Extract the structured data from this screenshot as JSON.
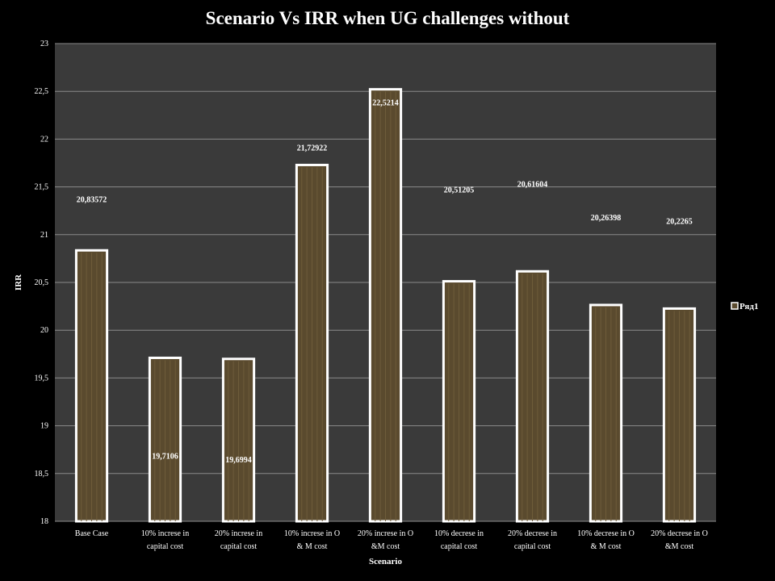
{
  "chart_data": {
    "type": "bar",
    "title": "Scenario Vs IRR when UG challenges without",
    "xlabel": "Scenario",
    "ylabel": "IRR",
    "ylim": [
      18,
      23
    ],
    "yticks": [
      "18",
      "18,5",
      "19",
      "19,5",
      "20",
      "20,5",
      "21",
      "21,5",
      "22",
      "22,5",
      "23"
    ],
    "tick_values": [
      18,
      18.5,
      19,
      19.5,
      20,
      20.5,
      21,
      21.5,
      22,
      22.5,
      23
    ],
    "grid": true,
    "legend_position": "right",
    "categories": [
      [
        "Base Case"
      ],
      [
        "10% increse in",
        "capital cost"
      ],
      [
        "20% increse in",
        "capital cost"
      ],
      [
        "10% increse in O",
        "& M cost"
      ],
      [
        "20% increse in O",
        "&M cost"
      ],
      [
        "10% decrese in",
        "capital cost"
      ],
      [
        "20% decrese in",
        "capital cost"
      ],
      [
        "10% decrese in O",
        "& M cost"
      ],
      [
        "20% decrese in O",
        "&M cost"
      ]
    ],
    "series": [
      {
        "name": "Ряд1",
        "values": [
          20.83572,
          19.7106,
          19.6994,
          21.72922,
          22.5214,
          20.51205,
          20.61604,
          20.26398,
          20.2265
        ],
        "labels": [
          "20,83572",
          "19,7106",
          "19,6994",
          "21,72922",
          "22,5214",
          "20,51205",
          "20,61604",
          "20,26398",
          "20,2265"
        ]
      }
    ],
    "colors": {
      "background": "#000000",
      "plot_area": "#3a3a3a",
      "bar_fill": "#5a4a2e",
      "bar_outline": "#ffffff",
      "grid": "#8a8a8a"
    }
  }
}
